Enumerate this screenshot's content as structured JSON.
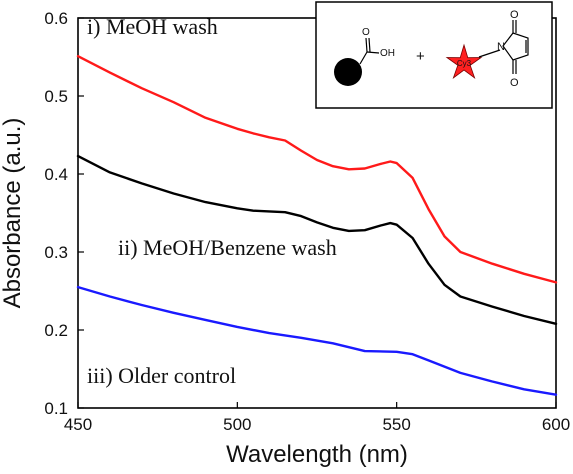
{
  "chart_data": {
    "type": "line",
    "xlabel": "Wavelength (nm)",
    "ylabel": "Absorbance (a.u.)",
    "xlim": [
      450,
      600
    ],
    "ylim": [
      0.1,
      0.6
    ],
    "x_ticks": [
      "450",
      "500",
      "550",
      "600"
    ],
    "y_ticks": [
      "0.1",
      "0.2",
      "0.3",
      "0.4",
      "0.5",
      "0.6"
    ],
    "grid": false,
    "series": [
      {
        "name": "i) MeOH wash",
        "color": "#ff1a1a",
        "x": [
          450,
          460,
          470,
          480,
          490,
          500,
          505,
          510,
          515,
          520,
          525,
          530,
          535,
          540,
          545,
          548,
          550,
          555,
          560,
          565,
          570,
          580,
          590,
          600
        ],
        "y": [
          0.551,
          0.53,
          0.51,
          0.492,
          0.472,
          0.458,
          0.452,
          0.447,
          0.443,
          0.43,
          0.418,
          0.41,
          0.406,
          0.407,
          0.413,
          0.416,
          0.414,
          0.395,
          0.355,
          0.32,
          0.3,
          0.285,
          0.272,
          0.261
        ]
      },
      {
        "name": "ii) MeOH/Benzene wash",
        "color": "#000000",
        "x": [
          450,
          460,
          470,
          480,
          490,
          500,
          505,
          510,
          515,
          520,
          525,
          530,
          535,
          540,
          545,
          548,
          550,
          555,
          560,
          565,
          570,
          580,
          590,
          600
        ],
        "y": [
          0.423,
          0.402,
          0.388,
          0.375,
          0.364,
          0.356,
          0.353,
          0.352,
          0.351,
          0.346,
          0.338,
          0.331,
          0.327,
          0.328,
          0.334,
          0.337,
          0.335,
          0.318,
          0.285,
          0.258,
          0.243,
          0.23,
          0.218,
          0.208
        ]
      },
      {
        "name": "iii) Older control",
        "color": "#1a1aff",
        "x": [
          450,
          460,
          470,
          480,
          490,
          500,
          510,
          520,
          530,
          540,
          550,
          555,
          560,
          570,
          580,
          590,
          600
        ],
        "y": [
          0.255,
          0.243,
          0.232,
          0.222,
          0.213,
          0.204,
          0.196,
          0.19,
          0.183,
          0.173,
          0.172,
          0.169,
          0.161,
          0.145,
          0.134,
          0.124,
          0.117
        ]
      }
    ]
  },
  "labels": {
    "series_1": "i) MeOH wash",
    "series_2": "ii) MeOH/Benzene wash",
    "series_3": "iii) Older control"
  },
  "inset": {
    "oh_label": "OH",
    "carbonyl_o_label": "O",
    "plus_label": "+",
    "star_label": "Cy3",
    "star_color": "#ff2020",
    "particle_color": "#000000",
    "n_label": "N",
    "maleimide_o_top": "O",
    "maleimide_o_bottom": "O"
  }
}
